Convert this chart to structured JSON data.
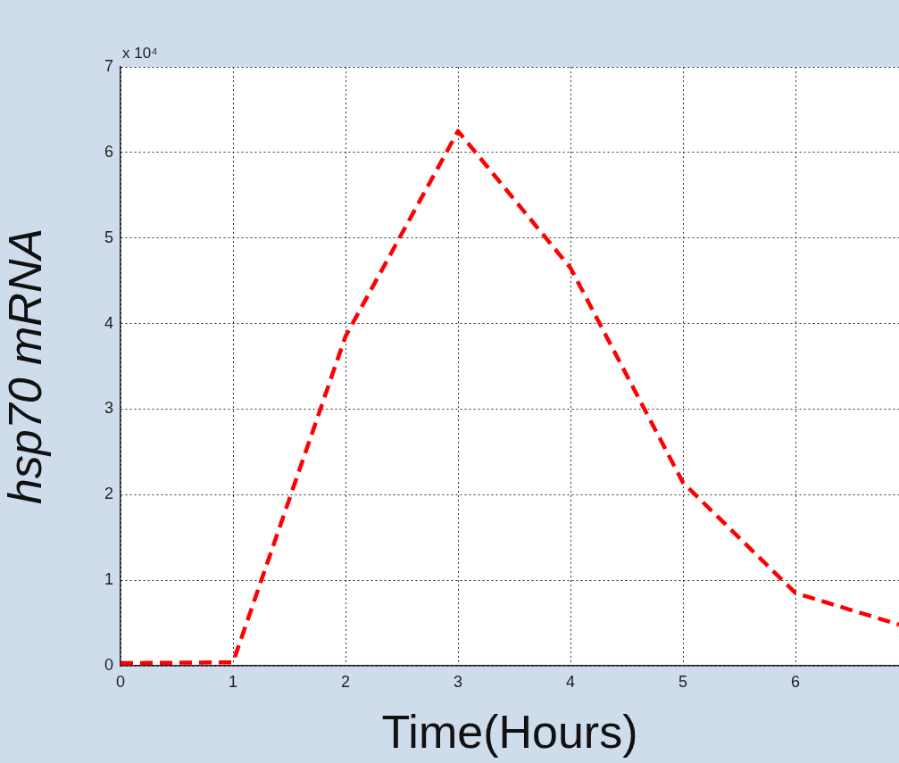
{
  "chart_data": {
    "type": "line",
    "xlabel": "Time(Hours)",
    "ylabel": "hsp70 mRNA",
    "x": [
      0,
      1,
      2,
      3,
      4,
      5,
      6,
      6.92
    ],
    "series": [
      {
        "color": "#ff0000",
        "values": [
          0.03,
          0.04,
          3.85,
          6.25,
          4.65,
          2.14,
          0.85,
          0.48
        ]
      }
    ],
    "xlim": [
      0,
      6.92
    ],
    "xticks": [
      0,
      1,
      2,
      3,
      4,
      5,
      6
    ],
    "ylim": [
      0,
      7
    ],
    "yticks": [
      0,
      1,
      2,
      3,
      4,
      5,
      6,
      7
    ],
    "annotations": [
      "x 10⁴"
    ],
    "grid": true,
    "legend": false,
    "marker": "none",
    "line_style": "dashed"
  }
}
